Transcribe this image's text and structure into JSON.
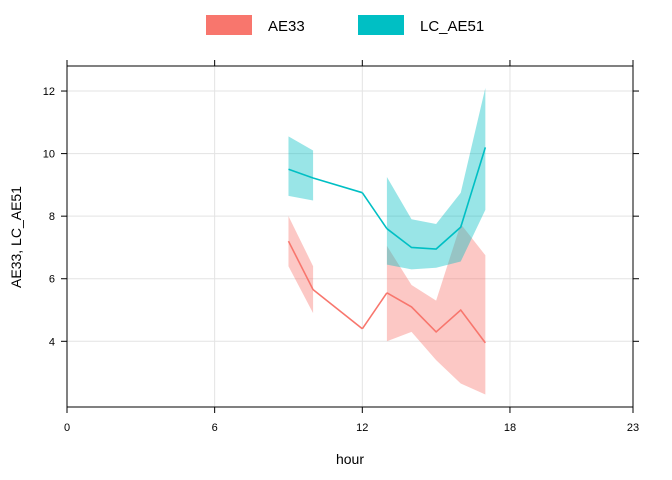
{
  "chart_data": {
    "type": "line",
    "xlabel": "hour",
    "ylabel": "AE33, LC_AE51",
    "xlim": [
      0,
      23
    ],
    "ylim": [
      1.9,
      12.8
    ],
    "xticks": [
      0,
      6,
      12,
      18,
      23
    ],
    "yticks": [
      4,
      6,
      8,
      10,
      12
    ],
    "grid": true,
    "legend_position": "top",
    "series": [
      {
        "name": "AE33",
        "color": "#F8766D",
        "segments": [
          {
            "x": [
              9,
              10
            ],
            "y": [
              7.2,
              5.65
            ],
            "lower": [
              6.4,
              4.9
            ],
            "upper": [
              8.0,
              6.4
            ]
          },
          {
            "x": [
              12
            ],
            "y": [
              4.4
            ],
            "lower": [
              4.4
            ],
            "upper": [
              4.4
            ]
          },
          {
            "x": [
              13,
              14,
              15,
              16,
              17
            ],
            "y": [
              5.55,
              5.1,
              4.3,
              5.0,
              3.95
            ],
            "lower": [
              4.0,
              4.3,
              3.4,
              2.65,
              2.3
            ],
            "upper": [
              7.05,
              5.8,
              5.3,
              7.75,
              6.75
            ]
          }
        ]
      },
      {
        "name": "LC_AE51",
        "color": "#00BFC4",
        "segments": [
          {
            "x": [
              9,
              10
            ],
            "y": [
              9.5,
              9.22
            ],
            "lower": [
              8.65,
              8.5
            ],
            "upper": [
              10.55,
              10.1
            ]
          },
          {
            "x": [
              12
            ],
            "y": [
              8.75
            ],
            "lower": [
              8.75
            ],
            "upper": [
              8.75
            ]
          },
          {
            "x": [
              13,
              14,
              15,
              16,
              17
            ],
            "y": [
              7.6,
              7.0,
              6.95,
              7.65,
              10.2
            ],
            "lower": [
              6.45,
              6.3,
              6.35,
              6.55,
              8.2
            ],
            "upper": [
              9.25,
              7.9,
              7.75,
              8.75,
              12.1
            ]
          }
        ]
      }
    ]
  }
}
